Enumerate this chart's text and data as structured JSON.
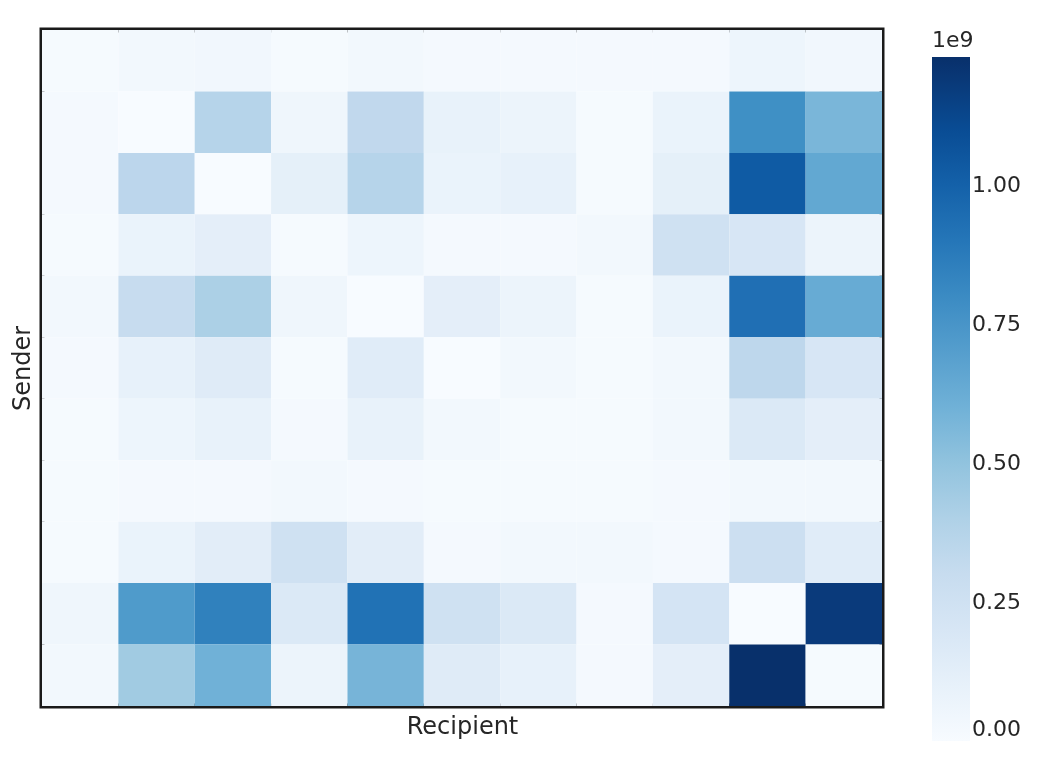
{
  "chart_data": {
    "type": "heatmap",
    "xlabel": "Recipient",
    "ylabel": "Sender",
    "clabel": "1e9",
    "categories": [
      null,
      null,
      null,
      null,
      null,
      null,
      null,
      null,
      null,
      null,
      null
    ],
    "y_categories": [
      null,
      null,
      null,
      null,
      null,
      null,
      null,
      null,
      null,
      null,
      null
    ],
    "cells": [
      [
        0.01,
        0.03,
        0.04,
        0.01,
        0.03,
        0.02,
        0.02,
        0.02,
        0.02,
        0.06,
        0.04
      ],
      [
        0.02,
        0.0,
        0.37,
        0.05,
        0.33,
        0.09,
        0.07,
        0.01,
        0.08,
        0.78,
        0.57
      ],
      [
        0.02,
        0.35,
        0.0,
        0.11,
        0.37,
        0.08,
        0.1,
        0.01,
        0.11,
        1.03,
        0.65
      ],
      [
        0.01,
        0.08,
        0.12,
        0.01,
        0.06,
        0.02,
        0.02,
        0.03,
        0.25,
        0.2,
        0.07
      ],
      [
        0.03,
        0.3,
        0.41,
        0.05,
        0.0,
        0.12,
        0.07,
        0.01,
        0.08,
        0.93,
        0.63
      ],
      [
        0.02,
        0.1,
        0.15,
        0.01,
        0.14,
        0.0,
        0.03,
        0.01,
        0.03,
        0.34,
        0.2
      ],
      [
        0.01,
        0.06,
        0.09,
        0.02,
        0.09,
        0.03,
        0.01,
        0.01,
        0.03,
        0.17,
        0.12
      ],
      [
        0.01,
        0.02,
        0.02,
        0.03,
        0.02,
        0.01,
        0.01,
        0.01,
        0.02,
        0.03,
        0.03
      ],
      [
        0.01,
        0.08,
        0.13,
        0.25,
        0.13,
        0.02,
        0.03,
        0.03,
        0.02,
        0.27,
        0.14
      ],
      [
        0.05,
        0.72,
        0.85,
        0.17,
        0.92,
        0.25,
        0.17,
        0.02,
        0.22,
        0.0,
        1.18
      ],
      [
        0.03,
        0.45,
        0.6,
        0.07,
        0.58,
        0.15,
        0.1,
        0.02,
        0.12,
        1.23,
        0.01
      ]
    ],
    "clim": [
      0,
      1.23
    ],
    "cticks": [
      {
        "value": 0,
        "label": "0.00"
      },
      {
        "value": 0.25,
        "label": "0.25"
      },
      {
        "value": 0.5,
        "label": "0.50"
      },
      {
        "value": 0.75,
        "label": "0.75"
      },
      {
        "value": 1,
        "label": "1.00"
      }
    ]
  }
}
